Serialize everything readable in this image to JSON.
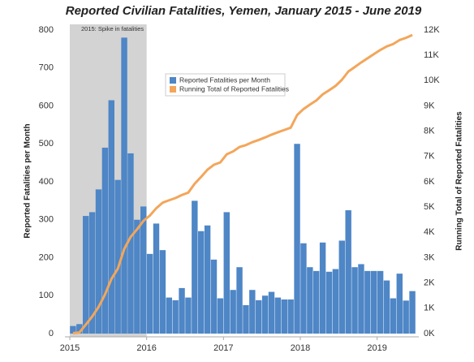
{
  "chart_data": {
    "type": "bar_line",
    "title": "Reported Civilian Fatalities, Yemen, January 2015 - June 2019",
    "annotation": "2015: Spike in fatalities",
    "ylabel": "Reported Fatalities per Month",
    "y2label": "Running Total of Reported Fatalities",
    "categories": [
      "2015",
      null,
      null,
      null,
      null,
      null,
      null,
      null,
      null,
      null,
      null,
      null,
      "2016",
      null,
      null,
      null,
      null,
      null,
      null,
      null,
      null,
      null,
      null,
      null,
      "2017",
      null,
      null,
      null,
      null,
      null,
      null,
      null,
      null,
      null,
      null,
      null,
      "2018",
      null,
      null,
      null,
      null,
      null,
      null,
      null,
      null,
      null,
      null,
      null,
      "2019",
      null,
      null,
      null,
      null,
      null
    ],
    "series": [
      {
        "name": "Reported Fatalities per Month",
        "color": "#4e86c6",
        "type": "bar",
        "values": [
          20,
          25,
          310,
          320,
          380,
          490,
          615,
          405,
          780,
          475,
          300,
          335,
          210,
          290,
          220,
          95,
          88,
          120,
          95,
          350,
          270,
          285,
          195,
          93,
          320,
          115,
          175,
          75,
          115,
          88,
          100,
          110,
          95,
          90,
          90,
          500,
          238,
          175,
          165,
          240,
          163,
          170,
          245,
          325,
          175,
          183,
          165,
          165,
          165,
          140,
          93,
          158,
          87,
          112
        ]
      },
      {
        "name": "Running Total of Reported Fatalities",
        "color": "#f3a65a",
        "type": "line",
        "axis": "y2",
        "values": [
          20,
          45,
          355,
          675,
          1055,
          1545,
          2160,
          2565,
          3345,
          3820,
          4120,
          4455,
          4665,
          4955,
          5175,
          5270,
          5358,
          5478,
          5573,
          5923,
          6193,
          6478,
          6673,
          6766,
          7086,
          7201,
          7376,
          7451,
          7566,
          7654,
          7754,
          7864,
          7959,
          8049,
          8139,
          8639,
          8877,
          9052,
          9217,
          9457,
          9620,
          9790,
          10035,
          10360,
          10535,
          10718,
          10883,
          11048,
          11213,
          11353,
          11446,
          11604,
          11691,
          11803
        ]
      }
    ],
    "ylim": [
      0,
      800
    ],
    "yticks": [
      0,
      100,
      200,
      300,
      400,
      500,
      600,
      700,
      800
    ],
    "y2lim": [
      0,
      12000
    ],
    "y2ticks": [
      {
        "value": 0,
        "label": "0K"
      },
      {
        "value": 1000,
        "label": "1K"
      },
      {
        "value": 2000,
        "label": "2K"
      },
      {
        "value": 3000,
        "label": "3K"
      },
      {
        "value": 4000,
        "label": "4K"
      },
      {
        "value": 5000,
        "label": "5K"
      },
      {
        "value": 6000,
        "label": "6K"
      },
      {
        "value": 7000,
        "label": "7K"
      },
      {
        "value": 8000,
        "label": "8K"
      },
      {
        "value": 9000,
        "label": "9K"
      },
      {
        "value": 10000,
        "label": "10K"
      },
      {
        "value": 11000,
        "label": "11K"
      },
      {
        "value": 12000,
        "label": "12K"
      }
    ],
    "grid": false,
    "legend": "upper left"
  }
}
